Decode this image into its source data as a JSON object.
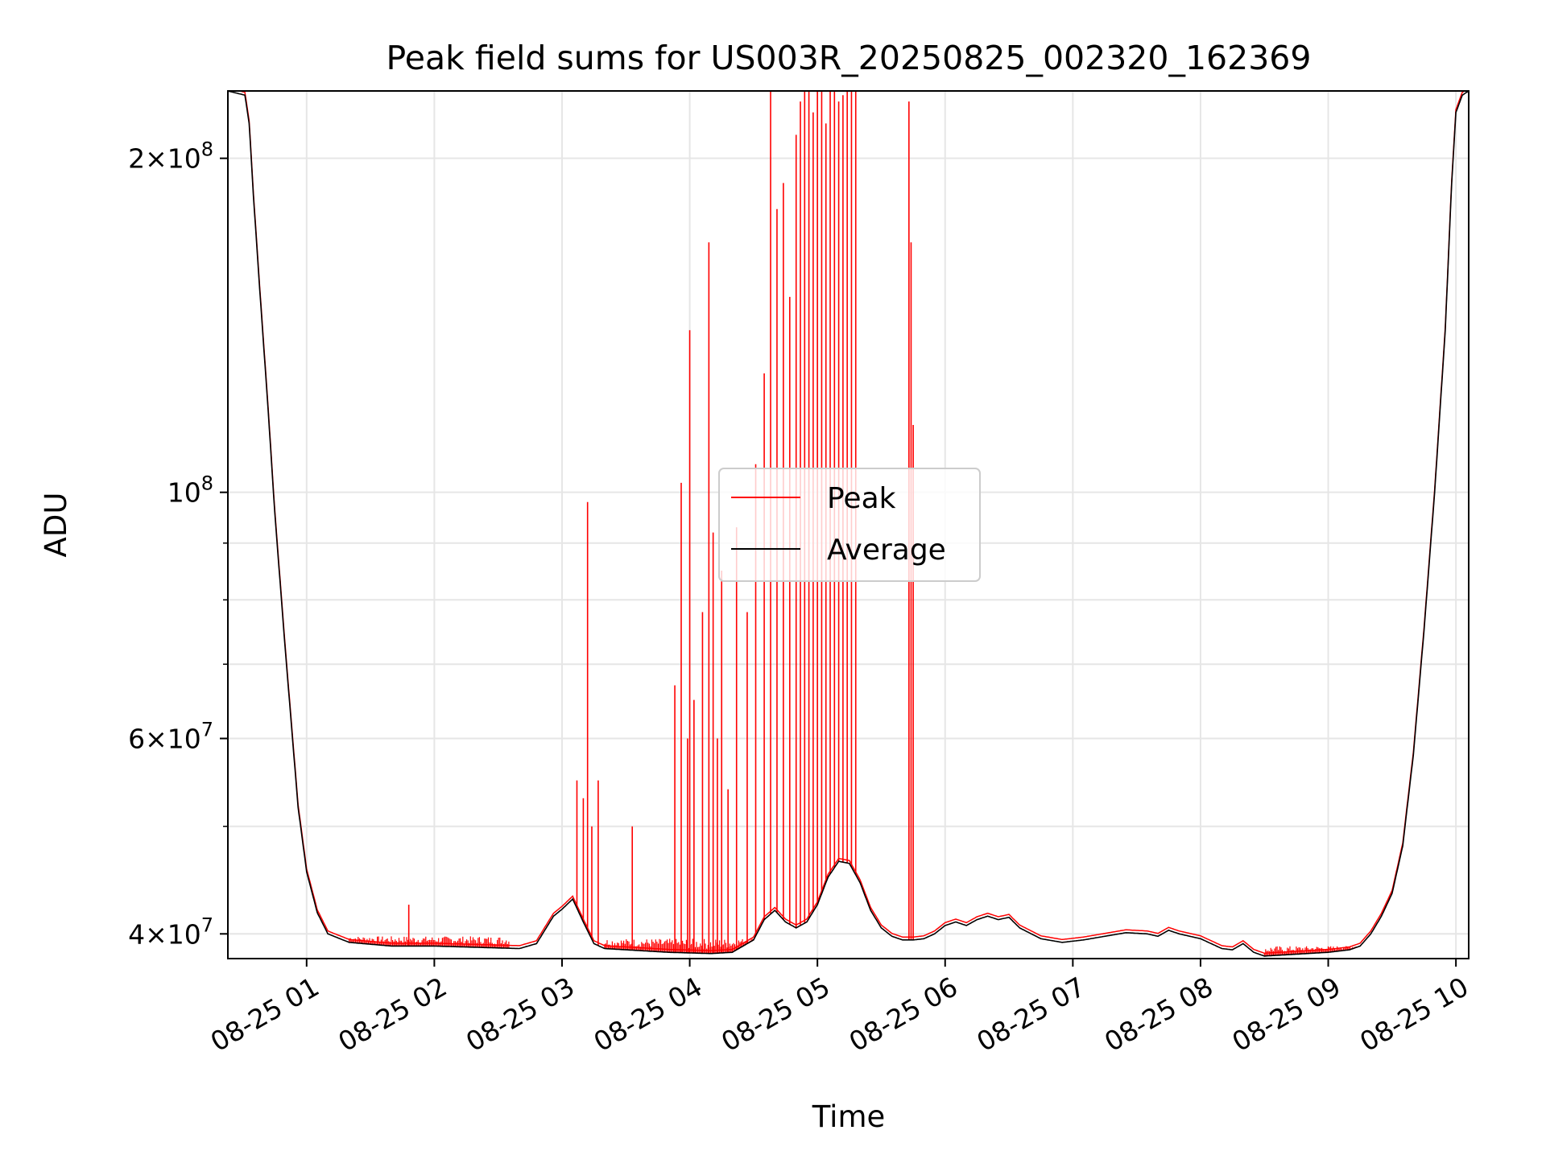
{
  "chart_data": {
    "type": "line",
    "title": "Peak field sums for US003R_20250825_002320_162369",
    "xlabel": "Time",
    "ylabel": "ADU",
    "yscale": "log",
    "ylim": [
      38000000,
      230000000
    ],
    "xlim": [
      "08-25 00:23",
      "08-25 10:06"
    ],
    "grid": true,
    "legend": {
      "position": "center",
      "entries": [
        "Peak",
        "Average"
      ]
    },
    "colors": {
      "Peak": "#ff0000",
      "Average": "#000000"
    },
    "x_ticks": [
      {
        "value": "08-25 01:00",
        "label": "08-25 01"
      },
      {
        "value": "08-25 02:00",
        "label": "08-25 02"
      },
      {
        "value": "08-25 03:00",
        "label": "08-25 03"
      },
      {
        "value": "08-25 04:00",
        "label": "08-25 04"
      },
      {
        "value": "08-25 05:00",
        "label": "08-25 05"
      },
      {
        "value": "08-25 06:00",
        "label": "08-25 06"
      },
      {
        "value": "08-25 07:00",
        "label": "08-25 07"
      },
      {
        "value": "08-25 08:00",
        "label": "08-25 08"
      },
      {
        "value": "08-25 09:00",
        "label": "08-25 09"
      },
      {
        "value": "08-25 10:00",
        "label": "08-25 10"
      }
    ],
    "y_ticks": [
      {
        "value": 40000000,
        "mantissa": "4",
        "exp": "7"
      },
      {
        "value": 60000000,
        "mantissa": "6",
        "exp": "7"
      },
      {
        "value": 100000000,
        "mantissa": "",
        "exp": "8"
      },
      {
        "value": 200000000,
        "mantissa": "2",
        "exp": "8"
      }
    ],
    "y_minor_ticks": [
      50000000,
      70000000,
      80000000,
      90000000
    ],
    "series": [
      {
        "name": "Average",
        "x": [
          "08-25 00:23",
          "08-25 00:31",
          "08-25 00:33",
          "08-25 00:35",
          "08-25 00:38",
          "08-25 00:42",
          "08-25 00:45",
          "08-25 00:50",
          "08-25 00:56",
          "08-25 01:00",
          "08-25 01:05",
          "08-25 01:10",
          "08-25 01:20",
          "08-25 01:40",
          "08-25 02:00",
          "08-25 02:20",
          "08-25 02:40",
          "08-25 02:48",
          "08-25 02:56",
          "08-25 03:00",
          "08-25 03:05",
          "08-25 03:10",
          "08-25 03:15",
          "08-25 03:20",
          "08-25 03:30",
          "08-25 03:50",
          "08-25 04:10",
          "08-25 04:20",
          "08-25 04:30",
          "08-25 04:35",
          "08-25 04:40",
          "08-25 04:45",
          "08-25 04:50",
          "08-25 04:55",
          "08-25 05:00",
          "08-25 05:05",
          "08-25 05:10",
          "08-25 05:15",
          "08-25 05:20",
          "08-25 05:25",
          "08-25 05:30",
          "08-25 05:35",
          "08-25 05:40",
          "08-25 05:45",
          "08-25 05:50",
          "08-25 05:55",
          "08-25 06:00",
          "08-25 06:05",
          "08-25 06:10",
          "08-25 06:15",
          "08-25 06:20",
          "08-25 06:25",
          "08-25 06:30",
          "08-25 06:35",
          "08-25 06:45",
          "08-25 06:55",
          "08-25 07:05",
          "08-25 07:15",
          "08-25 07:25",
          "08-25 07:35",
          "08-25 07:40",
          "08-25 07:45",
          "08-25 07:50",
          "08-25 08:00",
          "08-25 08:05",
          "08-25 08:10",
          "08-25 08:15",
          "08-25 08:20",
          "08-25 08:25",
          "08-25 08:30",
          "08-25 08:40",
          "08-25 08:50",
          "08-25 09:00",
          "08-25 09:10",
          "08-25 09:15",
          "08-25 09:20",
          "08-25 09:25",
          "08-25 09:30",
          "08-25 09:35",
          "08-25 09:40",
          "08-25 09:45",
          "08-25 09:50",
          "08-25 09:55",
          "08-25 09:58",
          "08-25 10:00",
          "08-25 10:03",
          "08-25 10:06"
        ],
        "y": [
          230000000,
          228000000,
          215000000,
          185000000,
          152000000,
          118000000,
          96000000,
          72000000,
          52000000,
          45500000,
          41800000,
          40000000,
          39300000,
          39000000,
          39000000,
          38900000,
          38800000,
          39200000,
          41500000,
          42100000,
          43000000,
          41000000,
          39200000,
          38800000,
          38700000,
          38500000,
          38400000,
          38500000,
          39500000,
          41200000,
          42000000,
          41000000,
          40500000,
          41000000,
          42500000,
          45000000,
          46500000,
          46300000,
          44500000,
          42000000,
          40500000,
          39800000,
          39500000,
          39500000,
          39600000,
          40000000,
          40700000,
          41000000,
          40700000,
          41200000,
          41500000,
          41200000,
          41400000,
          40500000,
          39600000,
          39300000,
          39500000,
          39800000,
          40100000,
          40000000,
          39800000,
          40300000,
          40000000,
          39600000,
          39200000,
          38800000,
          38700000,
          39200000,
          38500000,
          38200000,
          38300000,
          38400000,
          38500000,
          38700000,
          39000000,
          40000000,
          41500000,
          43500000,
          48000000,
          58000000,
          75000000,
          100000000,
          140000000,
          190000000,
          220000000,
          228000000,
          230000000
        ]
      },
      {
        "name": "Peak",
        "spikes_x": [
          "08-25 01:48",
          "08-25 03:07",
          "08-25 03:10",
          "08-25 03:12",
          "08-25 03:14",
          "08-25 03:17",
          "08-25 03:33",
          "08-25 03:53",
          "08-25 03:56",
          "08-25 03:59",
          "08-25 04:00",
          "08-25 04:02",
          "08-25 04:06",
          "08-25 04:09",
          "08-25 04:11",
          "08-25 04:13",
          "08-25 04:15",
          "08-25 04:18",
          "08-25 04:22",
          "08-25 04:27",
          "08-25 04:31",
          "08-25 04:35",
          "08-25 04:38",
          "08-25 04:41",
          "08-25 04:44",
          "08-25 04:47",
          "08-25 04:50",
          "08-25 04:52",
          "08-25 04:54",
          "08-25 04:56",
          "08-25 04:58",
          "08-25 05:00",
          "08-25 05:02",
          "08-25 05:04",
          "08-25 05:06",
          "08-25 05:08",
          "08-25 05:10",
          "08-25 05:12",
          "08-25 05:14",
          "08-25 05:16",
          "08-25 05:18",
          "08-25 05:43",
          "08-25 05:44",
          "08-25 05:45"
        ],
        "spikes_y": [
          42500000,
          55000000,
          53000000,
          98000000,
          50000000,
          55000000,
          50000000,
          67000000,
          102000000,
          60000000,
          140000000,
          65000000,
          78000000,
          168000000,
          92000000,
          60000000,
          85000000,
          54000000,
          93000000,
          78000000,
          106000000,
          128000000,
          230000000,
          180000000,
          190000000,
          150000000,
          210000000,
          225000000,
          230000000,
          230000000,
          220000000,
          230000000,
          230000000,
          215000000,
          230000000,
          230000000,
          225000000,
          228000000,
          230000000,
          230000000,
          230000000,
          225000000,
          168000000,
          115000000
        ],
        "noise_bands": [
          {
            "from": "08-25 01:20",
            "to": "08-25 02:35",
            "high": 39800000
          },
          {
            "from": "08-25 03:20",
            "to": "08-25 04:30",
            "high": 39600000
          },
          {
            "from": "08-25 08:30",
            "to": "08-25 09:15",
            "high": 39000000
          }
        ]
      }
    ]
  }
}
